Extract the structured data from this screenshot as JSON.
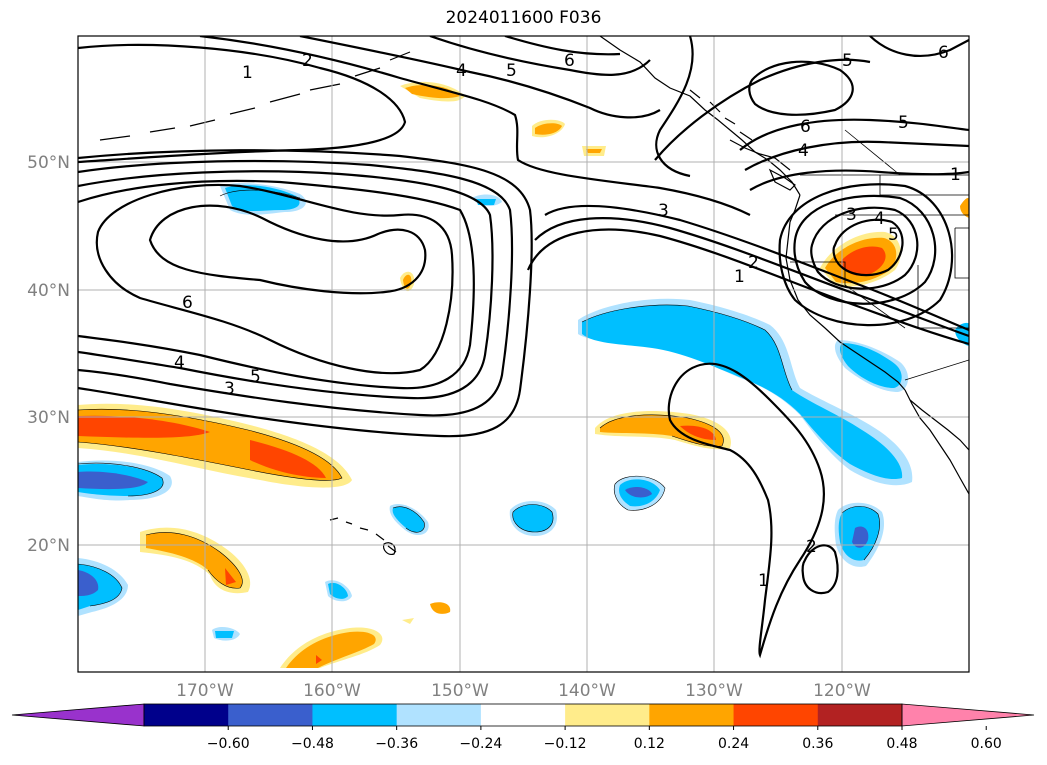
{
  "title": "2024011600 F036",
  "axes": {
    "lon_labels": [
      "170°W",
      "160°W",
      "150°W",
      "140°W",
      "130°W",
      "120°W"
    ],
    "lat_labels": [
      "50°N",
      "40°N",
      "30°N",
      "20°N"
    ],
    "lon_range": [
      -180,
      -110
    ],
    "lat_range": [
      10,
      60
    ],
    "grid": true
  },
  "colorbar": {
    "labels": [
      "−0.60",
      "−0.48",
      "−0.36",
      "−0.24",
      "−0.12",
      "0.12",
      "0.24",
      "0.36",
      "0.48",
      "0.60"
    ],
    "colors": [
      "#9932cc",
      "#00008b",
      "#3a5fcd",
      "#00bfff",
      "#b0e2ff",
      "#ffffff",
      "#ffec8b",
      "#ffa500",
      "#ff4500",
      "#b22222",
      "#ff82ab"
    ],
    "extend": "both",
    "orientation": "horizontal"
  },
  "contour_labels": [
    "1",
    "2",
    "3",
    "4",
    "5",
    "6"
  ]
}
